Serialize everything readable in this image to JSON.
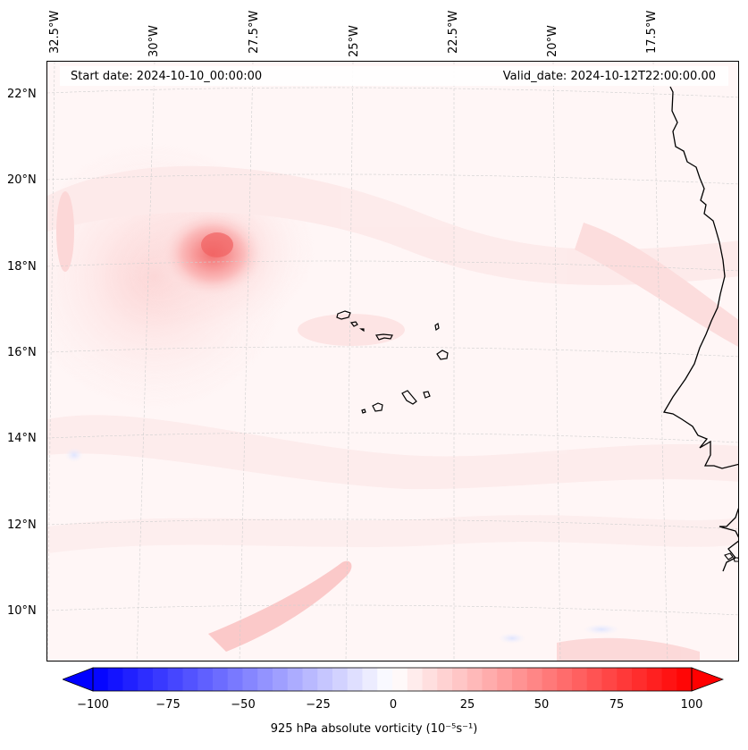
{
  "map": {
    "start_date": "Start date: 2024-10-10_00:00:00",
    "valid_date": "Valid_date: 2024-10-12T22:00:00.00",
    "lon_labels": [
      "32.5°W",
      "30°W",
      "27.5°W",
      "25°W",
      "22.5°W",
      "20°W",
      "17.5°W"
    ],
    "lat_labels": [
      "22°N",
      "20°N",
      "18°N",
      "16°N",
      "14°N",
      "12°N",
      "10°N"
    ]
  },
  "colorbar": {
    "ticks": [
      "−100",
      "−75",
      "−50",
      "−25",
      "0",
      "25",
      "50",
      "75",
      "100"
    ],
    "label": "925 hPa absolute vorticity (10⁻⁵s⁻¹)",
    "min": -100,
    "max": 100,
    "step": 5,
    "negative_color": "#0000ff",
    "positive_color": "#ff0000"
  },
  "colors": {
    "coastline": "#000000",
    "gridline": "#c8c8c8",
    "background": "#fff7f7"
  }
}
